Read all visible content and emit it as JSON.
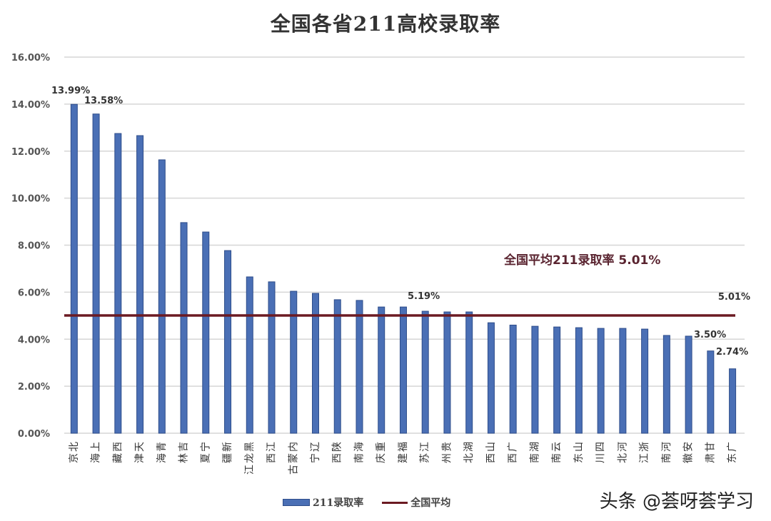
{
  "title": "全国各省211高校录取率",
  "watermark": "头条 @荟呀荟学习",
  "legend": {
    "series_bar": "211录取率",
    "series_line": "全国平均"
  },
  "annotation": "全国平均211录取率 5.01%",
  "colors": {
    "bar": "#4a6fb5",
    "bar_edge": "#2e4d8a",
    "line": "#6b1a22",
    "grid": "#d6d6d6"
  },
  "chart_data": {
    "type": "bar",
    "title": "全国各省211高校录取率",
    "xlabel": "",
    "ylabel": "",
    "ylim": [
      0,
      16
    ],
    "yticks": [
      "0.00%",
      "2.00%",
      "4.00%",
      "6.00%",
      "8.00%",
      "10.00%",
      "12.00%",
      "14.00%",
      "16.00%"
    ],
    "grid": true,
    "legend_position": "bottom",
    "categories": [
      "北京",
      "上海",
      "西藏",
      "天津",
      "青海",
      "吉林",
      "宁夏",
      "新疆",
      "黑龙江",
      "江西",
      "内蒙古",
      "辽宁",
      "陕西",
      "海南",
      "重庆",
      "福建",
      "江苏",
      "贵州",
      "湖北",
      "山西",
      "广西",
      "湖南",
      "云南",
      "山东",
      "四川",
      "河北",
      "浙江",
      "河南",
      "安徽",
      "甘肃",
      "广东"
    ],
    "series": [
      {
        "name": "211录取率",
        "type": "bar",
        "values": [
          13.99,
          13.58,
          12.75,
          12.66,
          11.63,
          8.96,
          8.56,
          7.77,
          6.65,
          6.44,
          6.04,
          5.95,
          5.68,
          5.65,
          5.37,
          5.37,
          5.19,
          5.16,
          5.16,
          4.7,
          4.6,
          4.55,
          4.52,
          4.49,
          4.46,
          4.46,
          4.43,
          4.16,
          4.13,
          3.5,
          2.74
        ]
      },
      {
        "name": "全国平均",
        "type": "line",
        "value": 5.01
      }
    ],
    "data_labels": [
      {
        "category": "北京",
        "text": "13.99%"
      },
      {
        "category": "上海",
        "text": "13.58%"
      },
      {
        "category": "江苏",
        "text": "5.19%"
      },
      {
        "category": "甘肃",
        "text": "3.50%"
      },
      {
        "category": "广东",
        "text": "2.74%"
      },
      {
        "category": "全国平均",
        "text": "5.01%"
      }
    ]
  }
}
